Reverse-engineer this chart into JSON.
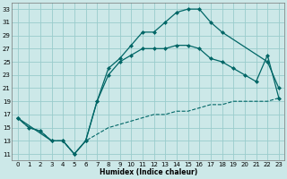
{
  "xlabel": "Humidex (Indice chaleur)",
  "background_color": "#cce8e8",
  "grid_color": "#99cccc",
  "line_color": "#006666",
  "xlim": [
    -0.5,
    23.5
  ],
  "ylim": [
    10,
    34
  ],
  "yticks": [
    11,
    13,
    15,
    17,
    19,
    21,
    23,
    25,
    27,
    29,
    31,
    33
  ],
  "xticks": [
    0,
    1,
    2,
    3,
    4,
    5,
    6,
    7,
    8,
    9,
    10,
    11,
    12,
    13,
    14,
    15,
    16,
    17,
    18,
    19,
    20,
    21,
    22,
    23
  ],
  "line1_x": [
    0,
    1,
    2,
    3,
    4,
    5,
    6,
    7,
    8,
    9,
    10,
    11,
    12,
    13,
    14,
    15,
    16,
    17,
    18,
    22,
    23
  ],
  "line1_y": [
    16.5,
    15,
    14.5,
    13,
    13,
    11,
    13,
    19,
    24,
    25.5,
    27.5,
    29.5,
    29.5,
    31,
    32.5,
    33,
    33,
    31,
    29.5,
    25,
    21
  ],
  "line2_x": [
    0,
    3,
    4,
    5,
    6,
    7,
    8,
    9,
    10,
    11,
    12,
    13,
    14,
    15,
    16,
    17,
    18,
    19,
    20,
    21,
    22,
    23
  ],
  "line2_y": [
    16.5,
    13,
    13,
    11,
    13,
    19,
    23,
    25,
    26,
    27,
    27,
    27,
    27.5,
    27.5,
    27,
    25.5,
    25,
    24,
    23,
    22,
    26,
    19.5
  ],
  "line3_x": [
    0,
    1,
    2,
    3,
    4,
    5,
    6,
    7,
    8,
    9,
    10,
    11,
    12,
    13,
    14,
    15,
    16,
    17,
    18,
    19,
    20,
    21,
    22,
    23
  ],
  "line3_y": [
    16.5,
    15,
    14.5,
    13,
    13,
    11,
    13,
    14,
    15,
    15.5,
    16,
    16.5,
    17,
    17,
    17.5,
    17.5,
    18,
    18.5,
    18.5,
    19,
    19,
    19,
    19,
    19.5
  ]
}
